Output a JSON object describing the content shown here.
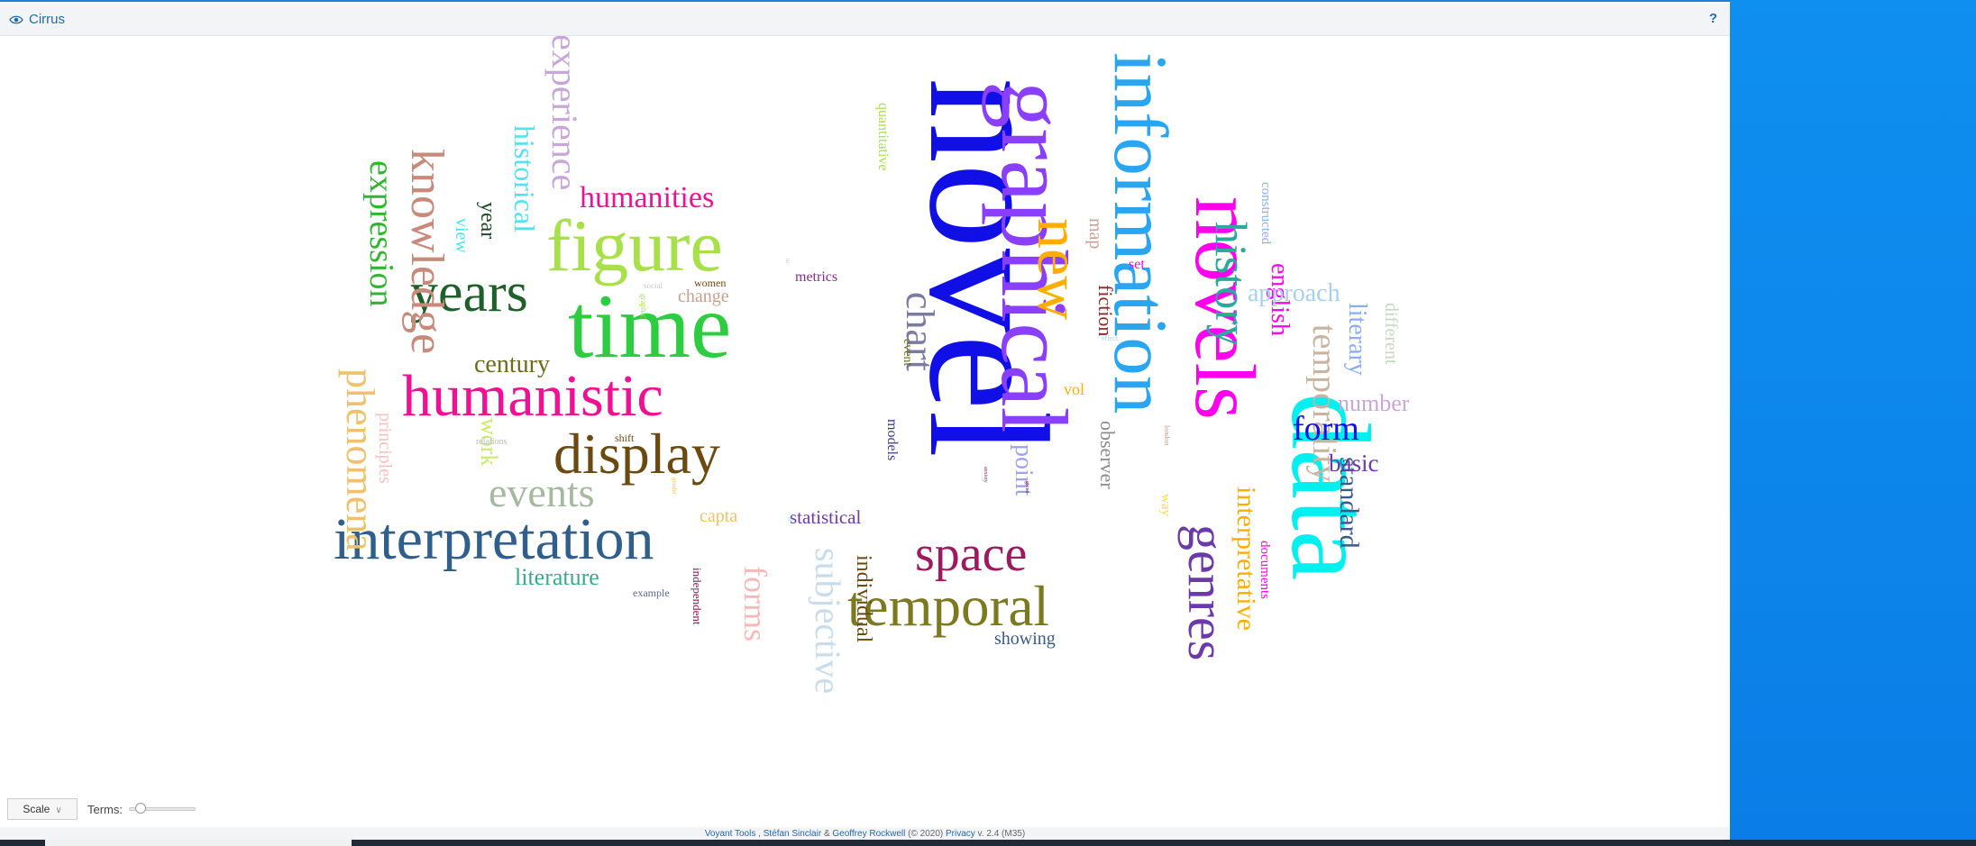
{
  "app": {
    "title": "Cirrus",
    "help_label": "?"
  },
  "toolbar": {
    "scale_label": "Scale",
    "terms_label": "Terms:",
    "terms_level": 0.12
  },
  "footer": {
    "tool": "Voyant Tools",
    "sep1": " , ",
    "author1": "Stéfan Sinclair",
    "amp": " & ",
    "author2": "Geoffrey Rockwell",
    "copy": " (© 2020) ",
    "privacy": "Privacy",
    "version": " v. 2.4 (M35)"
  },
  "words": [
    {
      "text": "novel",
      "color": "#1010e6"
    },
    {
      "text": "graphical",
      "color": "#8a3ffc"
    },
    {
      "text": "information",
      "color": "#2aa6f0"
    },
    {
      "text": "novels",
      "color": "#ff00ee"
    },
    {
      "text": "data",
      "color": "#00f0f0"
    },
    {
      "text": "time",
      "color": "#2ecc40"
    },
    {
      "text": "figure",
      "color": "#a8e04a"
    },
    {
      "text": "interpretation",
      "color": "#2f5f8a"
    },
    {
      "text": "humanistic",
      "color": "#ee1193"
    },
    {
      "text": "display",
      "color": "#6b4a12"
    },
    {
      "text": "temporal",
      "color": "#7b7a1e"
    },
    {
      "text": "space",
      "color": "#9c1a5e"
    },
    {
      "text": "genres",
      "color": "#6c3aa8"
    },
    {
      "text": "new",
      "color": "#ffae00"
    },
    {
      "text": "history",
      "color": "#2aaa9a"
    },
    {
      "text": "years",
      "color": "#1f5f2a"
    },
    {
      "text": "knowledge",
      "color": "#c88a7a"
    },
    {
      "text": "experience",
      "color": "#c8a6d8"
    },
    {
      "text": "expression",
      "color": "#32b432"
    },
    {
      "text": "phenomena",
      "color": "#f0c06a"
    },
    {
      "text": "events",
      "color": "#a6b8a0"
    },
    {
      "text": "humanities",
      "color": "#ee1193"
    },
    {
      "text": "historical",
      "color": "#55e0f0"
    },
    {
      "text": "chart",
      "color": "#7b7aa0"
    },
    {
      "text": "temporality",
      "color": "#c8b4a0"
    },
    {
      "text": "subjective",
      "color": "#c8dcec"
    },
    {
      "text": "forms",
      "color": "#f7b8b8"
    },
    {
      "text": "interpretative",
      "color": "#ffae00"
    },
    {
      "text": "form",
      "color": "#1010e6"
    },
    {
      "text": "literary",
      "color": "#8aaef0"
    },
    {
      "text": "standard",
      "color": "#3a5a8a"
    },
    {
      "text": "english",
      "color": "#ff00ee"
    },
    {
      "text": "approach",
      "color": "#a8d0ec"
    },
    {
      "text": "century",
      "color": "#6b6b1e"
    },
    {
      "text": "literature",
      "color": "#3aaa8a"
    },
    {
      "text": "point",
      "color": "#a0a0f0"
    },
    {
      "text": "observer",
      "color": "#8a8a8a"
    },
    {
      "text": "individual",
      "color": "#6b4a12"
    },
    {
      "text": "number",
      "color": "#c8a6d8"
    },
    {
      "text": "basic",
      "color": "#6c3aa8"
    },
    {
      "text": "work",
      "color": "#c8ec6a"
    },
    {
      "text": "year",
      "color": "#1f4a2a"
    },
    {
      "text": "view",
      "color": "#55e0f0"
    },
    {
      "text": "fiction",
      "color": "#8a2a2a"
    },
    {
      "text": "map",
      "color": "#c8a090"
    },
    {
      "text": "different",
      "color": "#c8d8c0"
    },
    {
      "text": "principles",
      "color": "#f7c0c0"
    },
    {
      "text": "statistical",
      "color": "#6c3aa8"
    },
    {
      "text": "capta",
      "color": "#f0c06a"
    },
    {
      "text": "showing",
      "color": "#3a5a8a"
    },
    {
      "text": "change",
      "color": "#c8a090"
    },
    {
      "text": "metrics",
      "color": "#8a2a8a"
    },
    {
      "text": "quantitative",
      "color": "#a8e04a"
    },
    {
      "text": "models",
      "color": "#3a3a8a"
    },
    {
      "text": "event",
      "color": "#6b6b1e"
    },
    {
      "text": "vol",
      "color": "#ffae00"
    },
    {
      "text": "set",
      "color": "#ff00ee"
    },
    {
      "text": "documents",
      "color": "#ff00ee"
    },
    {
      "text": "constructed",
      "color": "#8aaef0"
    },
    {
      "text": "way",
      "color": "#ffd84a"
    },
    {
      "text": "independent",
      "color": "#8a1a5a"
    },
    {
      "text": "example",
      "color": "#5a6a8a"
    },
    {
      "text": "women",
      "color": "#6b4a12"
    },
    {
      "text": "shift",
      "color": "#6b4a12"
    },
    {
      "text": "relations",
      "color": "#b8b8b8"
    },
    {
      "text": "social",
      "color": "#c8c8c8"
    },
    {
      "text": "graphic",
      "color": "#a8e04a"
    },
    {
      "text": "effect",
      "color": "#a8d0ec"
    },
    {
      "text": "london",
      "color": "#c8a090"
    },
    {
      "text": "anxiety",
      "color": "#9c1a5e"
    },
    {
      "text": "given",
      "color": "#8a1a5a"
    },
    {
      "text": "gender",
      "color": "#f0c06a"
    },
    {
      "text": "uc",
      "color": "#c8c8c8"
    },
    {
      "text": "rt",
      "color": "#55e0f0"
    }
  ]
}
